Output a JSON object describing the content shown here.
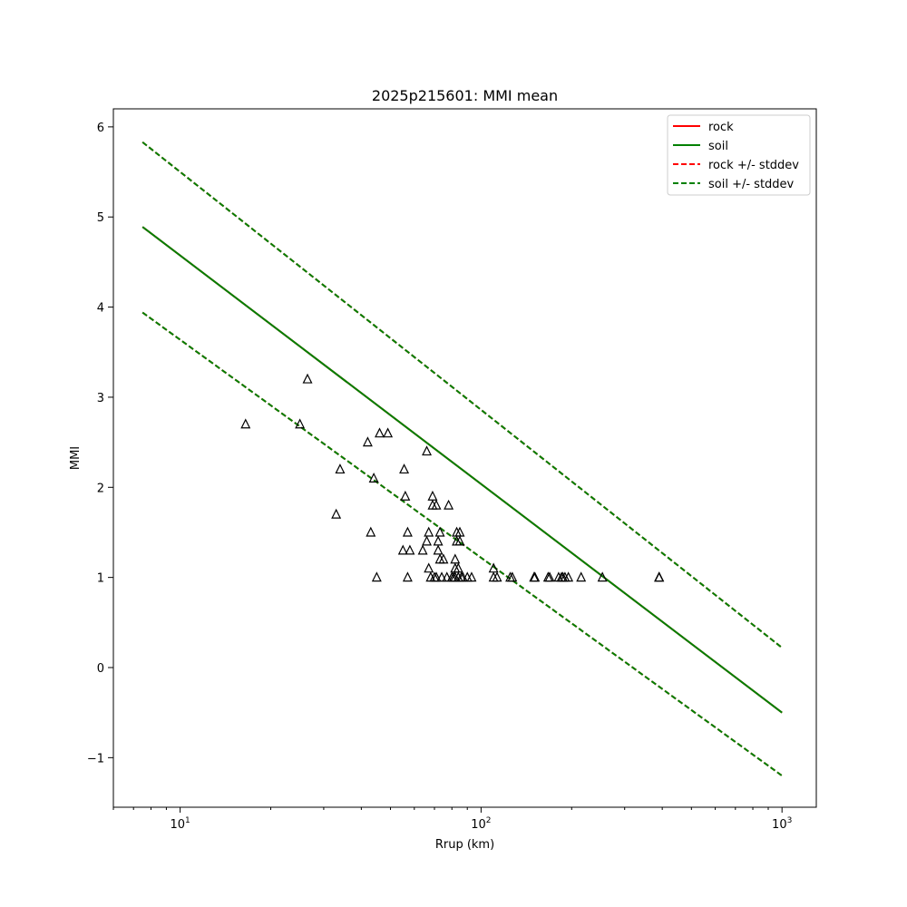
{
  "chart_data": {
    "type": "line",
    "title": "2025p215601: MMI mean",
    "xlabel": "Rrup (km)",
    "ylabel": "MMI",
    "xscale": "log",
    "xlim": [
      6,
      1300
    ],
    "ylim": [
      -1.55,
      6.2
    ],
    "x_ticks": [
      {
        "value": 10,
        "base": "10",
        "exp": "1"
      },
      {
        "value": 100,
        "base": "10",
        "exp": "2"
      },
      {
        "value": 1000,
        "base": "10",
        "exp": "3"
      }
    ],
    "y_ticks": [
      {
        "value": 6,
        "label": "6"
      },
      {
        "value": 5,
        "label": "5"
      },
      {
        "value": 4,
        "label": "4"
      },
      {
        "value": 3,
        "label": "3"
      },
      {
        "value": 2,
        "label": "2"
      },
      {
        "value": 1,
        "label": "1"
      },
      {
        "value": 0,
        "label": "0"
      },
      {
        "value": -1,
        "label": "−1"
      }
    ],
    "grid": false,
    "legend_position": "top-right",
    "series": [
      {
        "name": "rock",
        "color": "#ff0000",
        "dash": "solid",
        "x": [
          7.5,
          1000
        ],
        "y": [
          4.89,
          -0.5
        ]
      },
      {
        "name": "soil",
        "color": "#008000",
        "dash": "solid",
        "x": [
          7.5,
          1000
        ],
        "y": [
          4.89,
          -0.5
        ]
      },
      {
        "name": "rock +/- stddev",
        "color": "#ff0000",
        "dash": "dashed",
        "x": [
          7.5,
          1000
        ],
        "y": [
          5.83,
          0.22
        ],
        "y2": [
          3.94,
          -1.2
        ]
      },
      {
        "name": "soil +/- stddev",
        "color": "#008000",
        "dash": "dashed",
        "x": [
          7.5,
          1000
        ],
        "y": [
          5.83,
          0.22
        ],
        "y2": [
          3.94,
          -1.2
        ]
      }
    ],
    "observations": {
      "marker": "triangle",
      "color": "#000000",
      "points": [
        [
          16.5,
          2.7
        ],
        [
          25,
          2.7
        ],
        [
          26.5,
          3.2
        ],
        [
          33,
          1.7
        ],
        [
          34,
          2.2
        ],
        [
          42,
          2.5
        ],
        [
          43,
          1.5
        ],
        [
          44,
          2.1
        ],
        [
          45,
          1.0
        ],
        [
          46,
          2.6
        ],
        [
          49,
          2.6
        ],
        [
          55,
          1.3
        ],
        [
          55.5,
          2.2
        ],
        [
          56,
          1.9
        ],
        [
          57,
          1.5
        ],
        [
          57,
          1.0
        ],
        [
          58,
          1.3
        ],
        [
          64,
          1.3
        ],
        [
          66,
          2.4
        ],
        [
          66,
          1.4
        ],
        [
          67,
          1.5
        ],
        [
          67,
          1.1
        ],
        [
          68,
          1.0
        ],
        [
          69,
          1.8
        ],
        [
          69,
          1.9
        ],
        [
          70,
          1.0
        ],
        [
          71,
          1.8
        ],
        [
          71,
          1.0
        ],
        [
          72,
          1.3
        ],
        [
          72,
          1.4
        ],
        [
          73,
          1.5
        ],
        [
          73,
          1.2
        ],
        [
          74,
          1.0
        ],
        [
          75,
          1.2
        ],
        [
          77,
          1.0
        ],
        [
          78,
          1.8
        ],
        [
          80,
          1.0
        ],
        [
          81,
          1.0
        ],
        [
          82,
          1.1
        ],
        [
          82,
          1.2
        ],
        [
          82,
          1.0
        ],
        [
          83,
          1.5
        ],
        [
          83,
          1.4
        ],
        [
          84,
          1.0
        ],
        [
          84,
          1.1
        ],
        [
          85,
          1.5
        ],
        [
          85,
          1.4
        ],
        [
          86,
          1.0
        ],
        [
          87,
          1.0
        ],
        [
          90,
          1.0
        ],
        [
          93,
          1.0
        ],
        [
          110,
          1.1
        ],
        [
          110,
          1.0
        ],
        [
          113,
          1.0
        ],
        [
          125,
          1.0
        ],
        [
          127,
          1.0
        ],
        [
          150,
          1.0
        ],
        [
          151,
          1.0
        ],
        [
          167,
          1.0
        ],
        [
          169,
          1.0
        ],
        [
          181,
          1.0
        ],
        [
          185,
          1.0
        ],
        [
          187,
          1.0
        ],
        [
          190,
          1.0
        ],
        [
          195,
          1.0
        ],
        [
          215,
          1.0
        ],
        [
          253,
          1.0
        ],
        [
          390,
          1.0
        ],
        [
          391,
          1.0
        ]
      ]
    }
  }
}
